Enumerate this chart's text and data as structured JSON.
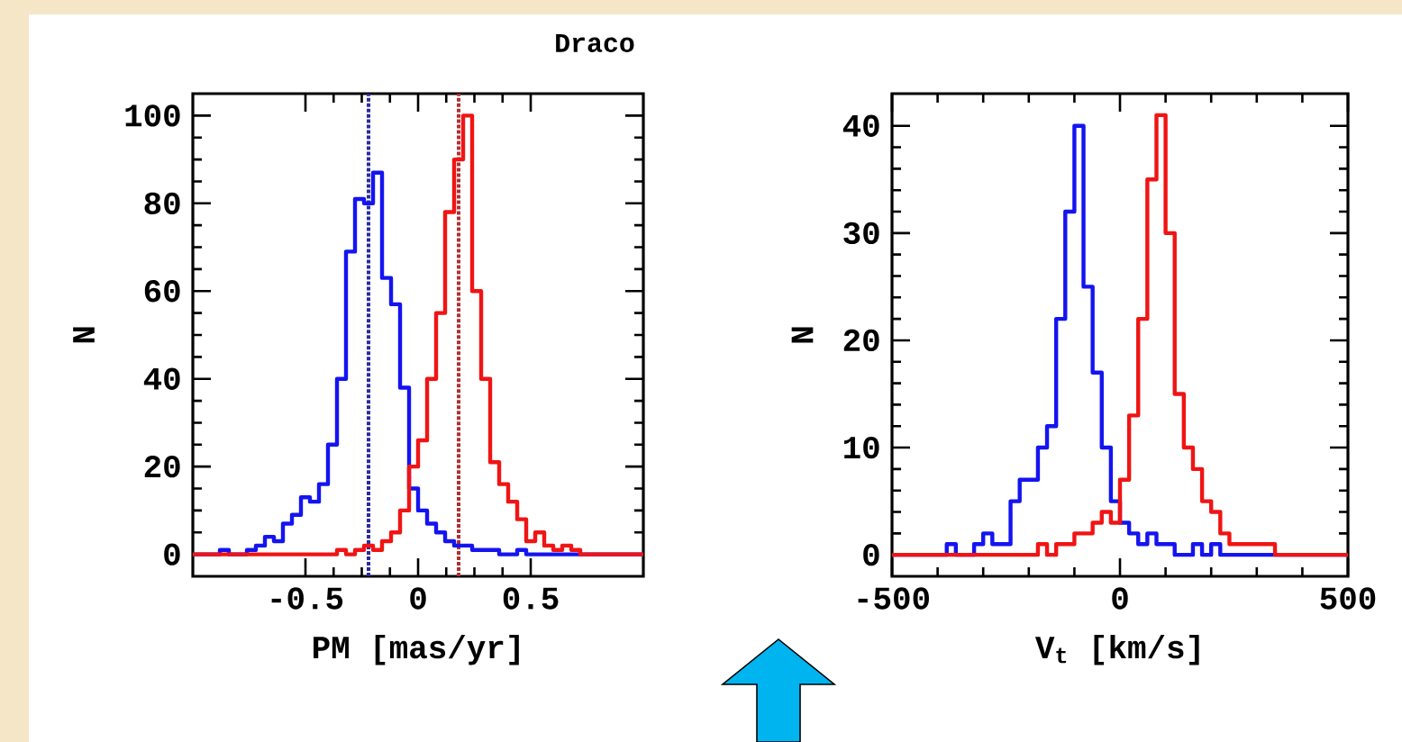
{
  "chart_data": [
    {
      "type": "histogram",
      "title": "Draco",
      "xlabel": "PM [mas/yr]",
      "ylabel": "N",
      "bins": [
        -1,
        -0.96,
        -0.92,
        -0.88,
        -0.84,
        -0.8,
        -0.76,
        -0.72,
        -0.68,
        -0.64,
        -0.6,
        -0.56,
        -0.52,
        -0.48,
        -0.44,
        -0.4,
        -0.36,
        -0.32,
        -0.28,
        -0.24,
        -0.2,
        -0.16,
        -0.12,
        -0.08,
        -0.04,
        0,
        0.04,
        0.08,
        0.12,
        0.16,
        0.2,
        0.24,
        0.28,
        0.32,
        0.36,
        0.4,
        0.44,
        0.48,
        0.52,
        0.56,
        0.6,
        0.64,
        0.68,
        0.72,
        0.76,
        0.8,
        0.84,
        0.88,
        0.92,
        0.96,
        1
      ],
      "series": [
        {
          "color": "#1414f0",
          "values": [
            0,
            0,
            0,
            1,
            0,
            0,
            1,
            2,
            4,
            3,
            7,
            9,
            13,
            12,
            16,
            25,
            40,
            69,
            81,
            80,
            87,
            63,
            57,
            38,
            15,
            10,
            7,
            5,
            3,
            2,
            2,
            1,
            1,
            1,
            0,
            0,
            1,
            0,
            0,
            0,
            0,
            0,
            0,
            0,
            0,
            0,
            0,
            0,
            0,
            0
          ]
        },
        {
          "color": "#f01414",
          "values": [
            0,
            0,
            0,
            0,
            0,
            0,
            0,
            0,
            0,
            0,
            0,
            0,
            0,
            0,
            0,
            0,
            1,
            0,
            1,
            2,
            1,
            3,
            5,
            10,
            20,
            26,
            40,
            55,
            78,
            90,
            100,
            60,
            40,
            21,
            16,
            12,
            8,
            3,
            5,
            2,
            1,
            2,
            1,
            0,
            0,
            0,
            0,
            0,
            0,
            0
          ]
        }
      ],
      "ref_lines": [
        {
          "axis": "x",
          "value": -0.22,
          "color": "#2a2aa0",
          "line_style": "dotted"
        },
        {
          "axis": "x",
          "value": 0.18,
          "color": "#b03030",
          "line_style": "dotted"
        }
      ],
      "xlim": [
        -1,
        1
      ],
      "ylim": [
        -5,
        105
      ],
      "xticks": [
        -0.5,
        0,
        0.5
      ],
      "yticks": [
        0,
        20,
        40,
        60,
        80,
        100
      ]
    },
    {
      "type": "histogram",
      "xlabel": "V$_{t}$ [km/s]",
      "ylabel": "N",
      "bins": [
        -500,
        -480,
        -460,
        -440,
        -420,
        -400,
        -380,
        -360,
        -340,
        -320,
        -300,
        -280,
        -260,
        -240,
        -220,
        -200,
        -180,
        -160,
        -140,
        -120,
        -100,
        -80,
        -60,
        -40,
        -20,
        0,
        20,
        40,
        60,
        80,
        100,
        120,
        140,
        160,
        180,
        200,
        220,
        240,
        260,
        280,
        300,
        320,
        340,
        360,
        380,
        400,
        420,
        440,
        460,
        480,
        500
      ],
      "series": [
        {
          "color": "#1414f0",
          "values": [
            0,
            0,
            0,
            0,
            0,
            0,
            1,
            0,
            0,
            1,
            2,
            1,
            1,
            5,
            7,
            7,
            10,
            12,
            22,
            32,
            40,
            25,
            17,
            10,
            5,
            3,
            2,
            1,
            2,
            1,
            1,
            0,
            0,
            1,
            0,
            1,
            0,
            0,
            0,
            0,
            0,
            0,
            0,
            0,
            0,
            0,
            0,
            0,
            0,
            0
          ]
        },
        {
          "color": "#f01414",
          "values": [
            0,
            0,
            0,
            0,
            0,
            0,
            0,
            0,
            0,
            0,
            0,
            0,
            0,
            0,
            0,
            0,
            1,
            0,
            1,
            1,
            2,
            2,
            3,
            4,
            3,
            7,
            13,
            22,
            35,
            41,
            30,
            15,
            10,
            8,
            5,
            4,
            2,
            1,
            1,
            1,
            1,
            1,
            0,
            0,
            0,
            0,
            0,
            0,
            0,
            0
          ]
        }
      ],
      "xlim": [
        -500,
        500
      ],
      "ylim": [
        -2,
        43
      ],
      "xticks": [
        -500,
        0,
        500
      ],
      "yticks": [
        0,
        10,
        20,
        30,
        40
      ]
    }
  ]
}
